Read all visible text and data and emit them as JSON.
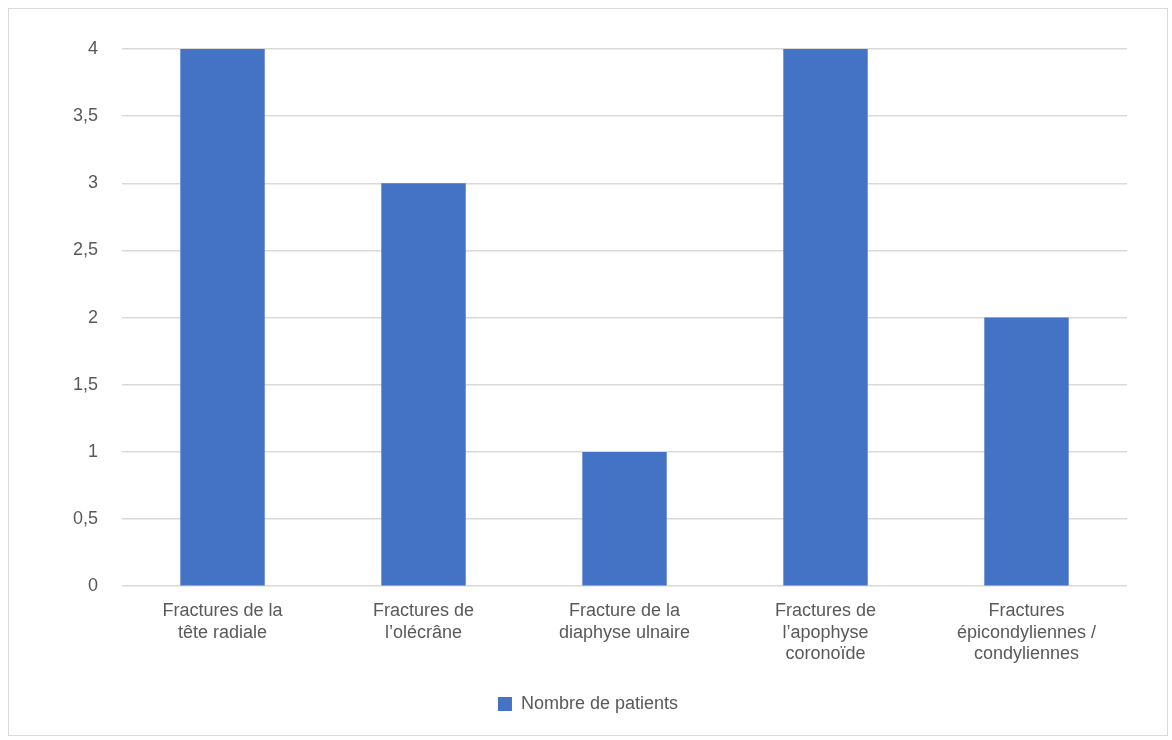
{
  "chart_data": {
    "type": "bar",
    "categories": [
      "Fractures de la tête radiale",
      "Fractures de l’olécrâne",
      "Fracture de la diaphyse ulnaire",
      "Fractures de l’apophyse coronoïde",
      "Fractures épicondyliennes / condyliennes"
    ],
    "series": [
      {
        "name": "Nombre de patients",
        "color": "#4472c4",
        "values": [
          4,
          3,
          1,
          4,
          2
        ]
      }
    ],
    "ylim": [
      0,
      4
    ],
    "yticks": [
      0,
      {
        "value": 0.5,
        "label": "0,5"
      },
      1,
      {
        "value": 1.5,
        "label": "1,5"
      },
      2,
      {
        "value": 2.5,
        "label": "2,5"
      },
      3,
      {
        "value": 3.5,
        "label": "3,5"
      },
      4
    ],
    "grid": "y",
    "legend": "bottom"
  }
}
